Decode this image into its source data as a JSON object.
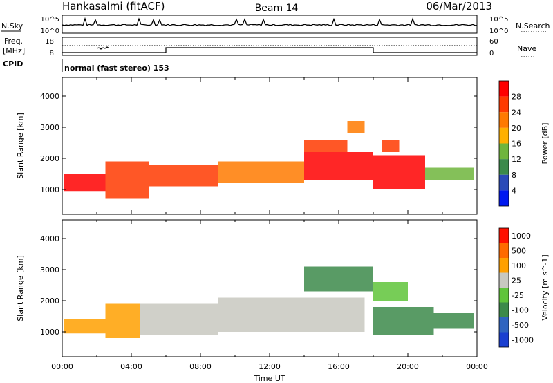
{
  "header": {
    "station": "Hankasalmi (fitACF)",
    "beam": "Beam 14",
    "date": "06/Mar/2013"
  },
  "noise_panel": {
    "left_label": "N.Sky",
    "right_label": "N.Search",
    "tick_top": "10^5",
    "tick_bottom": "10^0"
  },
  "freq_panel": {
    "label_top": "Freq.",
    "label_unit": "[MHz]",
    "cpid_label": "CPID",
    "right_label": "Nave",
    "left_ticks": [
      "18",
      "8"
    ],
    "right_ticks": [
      "60",
      "0"
    ]
  },
  "cpid_text": "normal (fast stereo) 153",
  "chart_data": [
    {
      "type": "heatmap",
      "title": "",
      "ylabel": "Slant Range [km]",
      "ylim": [
        200,
        4600
      ],
      "yticks": [
        "1000",
        "2000",
        "3000",
        "4000"
      ],
      "colorbar_label": "Power [dB]",
      "colorbar_ticks": [
        "4",
        "8",
        "12",
        "16",
        "20",
        "24",
        "28"
      ],
      "colorbar_colors": [
        "#0018f0",
        "#2a4ab8",
        "#3b8a4a",
        "#6fb53c",
        "#ffb000",
        "#ff7a00",
        "#ff3a00",
        "#ff0000"
      ],
      "xlim": [
        0,
        24
      ],
      "bands": [
        {
          "t0": 0.1,
          "t1": 2.5,
          "r_lo": 950,
          "r_hi": 1500,
          "level": 7
        },
        {
          "t0": 2.5,
          "t1": 5.0,
          "r_lo": 700,
          "r_hi": 1900,
          "level": 6
        },
        {
          "t0": 5.0,
          "t1": 9.0,
          "r_lo": 1100,
          "r_hi": 1800,
          "level": 6
        },
        {
          "t0": 9.0,
          "t1": 14.0,
          "r_lo": 1200,
          "r_hi": 1900,
          "level": 5
        },
        {
          "t0": 14.0,
          "t1": 18.0,
          "r_lo": 1300,
          "r_hi": 2200,
          "level": 7
        },
        {
          "t0": 14.0,
          "t1": 16.5,
          "r_lo": 2200,
          "r_hi": 2600,
          "level": 6
        },
        {
          "t0": 16.5,
          "t1": 17.5,
          "r_lo": 2800,
          "r_hi": 3200,
          "level": 5
        },
        {
          "t0": 18.0,
          "t1": 21.0,
          "r_lo": 1000,
          "r_hi": 2100,
          "level": 7
        },
        {
          "t0": 18.5,
          "t1": 19.5,
          "r_lo": 2200,
          "r_hi": 2600,
          "level": 6
        },
        {
          "t0": 21.0,
          "t1": 23.8,
          "r_lo": 1300,
          "r_hi": 1700,
          "level": 3
        }
      ]
    },
    {
      "type": "heatmap",
      "title": "",
      "ylabel": "Slant Range [km]",
      "ylim": [
        200,
        4600
      ],
      "yticks": [
        "1000",
        "2000",
        "3000",
        "4000"
      ],
      "colorbar_label": "Velocity [m s^-1]",
      "colorbar_ticks": [
        "1000",
        "500",
        "100",
        "25",
        "-25",
        "-100",
        "-500",
        "-1000"
      ],
      "colorbar_colors": [
        "#1a3fd0",
        "#2f64c0",
        "#3c8a4a",
        "#5fc43a",
        "#c8c8c0",
        "#ffa000",
        "#ff6a00",
        "#ff1000"
      ],
      "xlim": [
        0,
        24
      ],
      "bands": [
        {
          "t0": 0.1,
          "t1": 2.5,
          "r_lo": 950,
          "r_hi": 1400,
          "level": 5
        },
        {
          "t0": 2.5,
          "t1": 4.5,
          "r_lo": 800,
          "r_hi": 1900,
          "level": 5
        },
        {
          "t0": 4.5,
          "t1": 9.0,
          "r_lo": 900,
          "r_hi": 1900,
          "level": 4
        },
        {
          "t0": 9.0,
          "t1": 17.5,
          "r_lo": 1000,
          "r_hi": 2100,
          "level": 4
        },
        {
          "t0": 14.0,
          "t1": 18.0,
          "r_lo": 2300,
          "r_hi": 3100,
          "level": 2
        },
        {
          "t0": 18.0,
          "t1": 21.5,
          "r_lo": 900,
          "r_hi": 1800,
          "level": 2
        },
        {
          "t0": 18.0,
          "t1": 20.0,
          "r_lo": 2000,
          "r_hi": 2600,
          "level": 3
        },
        {
          "t0": 21.5,
          "t1": 23.8,
          "r_lo": 1100,
          "r_hi": 1600,
          "level": 2
        }
      ]
    }
  ],
  "x_axis": {
    "label": "Time UT",
    "ticks": [
      "00:00",
      "04:00",
      "08:00",
      "12:00",
      "16:00",
      "20:00",
      "00:00"
    ]
  }
}
